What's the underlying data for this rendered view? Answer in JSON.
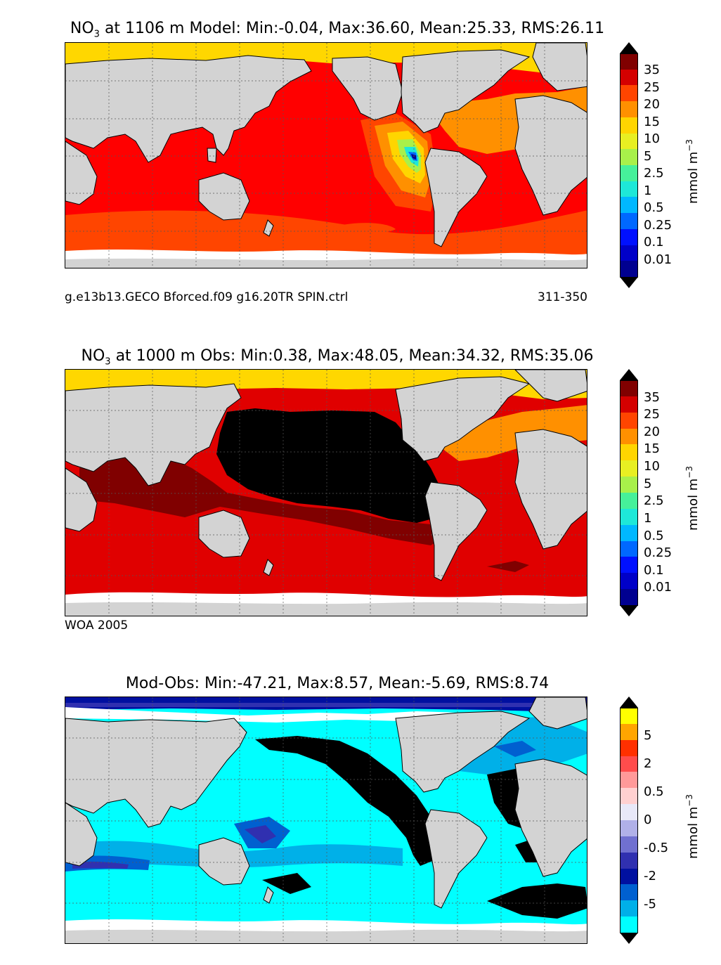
{
  "panels": [
    {
      "id": "model",
      "species": "NO",
      "species_sub": "3",
      "title_rest": " at 1106 m Model: Min:-0.04, Max:36.60, Mean:25.33, RMS:26.11",
      "caption_left": "g.e13b13.GECO Bforced.f09 g16.20TR SPIN.ctrl",
      "caption_right": "311-350",
      "unit_base": "mmol m",
      "unit_exp": "−3",
      "colorbar": {
        "ticks": [
          "35",
          "25",
          "20",
          "15",
          "10",
          "5",
          "2.5",
          "1",
          "0.5",
          "0.25",
          "0.1",
          "0.01"
        ],
        "colors_top_to_bottom": [
          "#800000",
          "#d40000",
          "#ff4500",
          "#ff9000",
          "#ffd500",
          "#e8ef22",
          "#a8f04a",
          "#46f09a",
          "#1ee8d8",
          "#00b8ff",
          "#0068ff",
          "#0010ff",
          "#0000c8",
          "#000090"
        ],
        "over_color": "#000000",
        "under_color": "#000000"
      },
      "map": {
        "ocean": "#ff0000",
        "arctic": "#ffd700",
        "north_atlantic": "#ff9000",
        "southern_ocean": "#ff4500",
        "tropical_east_pacific_gradient": [
          "#ff4500",
          "#ff9000",
          "#ffd500",
          "#a8f04a",
          "#1ee8d8",
          "#0068ff",
          "#000090"
        ]
      }
    },
    {
      "id": "obs",
      "species": "NO",
      "species_sub": "3",
      "title_rest": " at 1000 m Obs: Min:0.38, Max:48.05, Mean:34.32, RMS:35.06",
      "caption_left": "WOA 2005",
      "caption_right": "",
      "unit_base": "mmol m",
      "unit_exp": "−3",
      "colorbar": {
        "ticks": [
          "35",
          "25",
          "20",
          "15",
          "10",
          "5",
          "2.5",
          "1",
          "0.5",
          "0.25",
          "0.1",
          "0.01"
        ],
        "colors_top_to_bottom": [
          "#800000",
          "#d40000",
          "#ff4500",
          "#ff9000",
          "#ffd500",
          "#e8ef22",
          "#a8f04a",
          "#46f09a",
          "#1ee8d8",
          "#00b8ff",
          "#0068ff",
          "#0010ff",
          "#0000c8",
          "#000090"
        ],
        "over_color": "#000000",
        "under_color": "#000000"
      },
      "map": {
        "ocean": "#e00000",
        "arctic": "#ffd700",
        "north_atlantic": "#ff9000",
        "north_pacific": "#000000",
        "indian_ocean": "#800000"
      }
    },
    {
      "id": "diff",
      "species": "",
      "species_sub": "",
      "title_rest": "Mod-Obs: Min:-47.21, Max:8.57, Mean:-5.69, RMS:8.74",
      "caption_left": "",
      "caption_right": "",
      "unit_base": "mmol m",
      "unit_exp": "−3",
      "colorbar": {
        "ticks": [
          "5",
          "2",
          "0.5",
          "0",
          "-0.5",
          "-2",
          "-5"
        ],
        "colors_top_to_bottom": [
          "#ffff00",
          "#ffa500",
          "#ff3000",
          "#ff4c4c",
          "#ff9999",
          "#ffd0d0",
          "#e8e8f8",
          "#b0b0e8",
          "#7070d0",
          "#3030b0",
          "#0010a0",
          "#0060d0",
          "#00b0e8",
          "#00ffff"
        ],
        "over_color": "#000000",
        "under_color": "#000000"
      },
      "map": {
        "ocean": "#00ffff",
        "north_pacific": "#000000",
        "south_atlantic": "#000000",
        "north_atlantic": "#00b0e8",
        "arctic": "#0010a0"
      }
    }
  ],
  "land_color": "#d3d3d3",
  "missing_color": "#ffffff"
}
